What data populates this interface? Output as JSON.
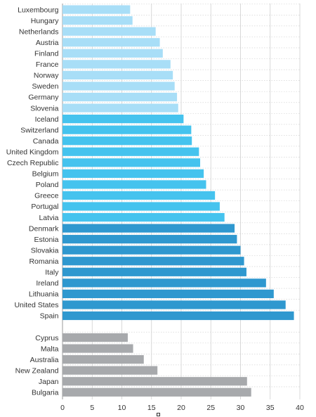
{
  "chart_data": {
    "type": "bar",
    "orientation": "horizontal",
    "title": "",
    "xlabel": "",
    "ylabel": "",
    "xlim": [
      0,
      40
    ],
    "xticks": [
      0,
      5,
      10,
      15,
      20,
      25,
      30,
      35,
      40
    ],
    "grid": true,
    "legend": "none",
    "groups": [
      {
        "color": "#a8def7",
        "items": [
          {
            "label": "Luxembourg",
            "value": 11.4
          },
          {
            "label": "Hungary",
            "value": 11.8
          },
          {
            "label": "Netherlands",
            "value": 15.7
          },
          {
            "label": "Austria",
            "value": 16.4
          },
          {
            "label": "Finland",
            "value": 16.9
          },
          {
            "label": "France",
            "value": 18.2
          },
          {
            "label": "Norway",
            "value": 18.6
          },
          {
            "label": "Sweden",
            "value": 18.9
          },
          {
            "label": "Germany",
            "value": 19.3
          },
          {
            "label": "Slovenia",
            "value": 19.5
          }
        ]
      },
      {
        "color": "#45c3ee",
        "items": [
          {
            "label": "Iceland",
            "value": 20.4
          },
          {
            "label": "Switzerland",
            "value": 21.7
          },
          {
            "label": "Canada",
            "value": 21.8
          },
          {
            "label": "United Kingdom",
            "value": 23.0
          },
          {
            "label": "Czech Republic",
            "value": 23.2
          },
          {
            "label": "Belgium",
            "value": 23.8
          },
          {
            "label": "Poland",
            "value": 24.2
          },
          {
            "label": "Greece",
            "value": 25.7
          },
          {
            "label": "Portugal",
            "value": 26.5
          },
          {
            "label": "Latvia",
            "value": 27.3
          }
        ]
      },
      {
        "color": "#2f98cf",
        "items": [
          {
            "label": "Denmark",
            "value": 29.0
          },
          {
            "label": "Estonia",
            "value": 29.4
          },
          {
            "label": "Slovakia",
            "value": 30.0
          },
          {
            "label": "Romania",
            "value": 30.6
          },
          {
            "label": "Italy",
            "value": 31.0
          },
          {
            "label": "Ireland",
            "value": 34.3
          },
          {
            "label": "Lithuania",
            "value": 35.6
          },
          {
            "label": "United States",
            "value": 37.6
          },
          {
            "label": "Spain",
            "value": 39.0
          }
        ]
      },
      {
        "color": "#a7a9ac",
        "items": [
          {
            "label": "Cyprus",
            "value": 11.0
          },
          {
            "label": "Malta",
            "value": 11.9
          },
          {
            "label": "Australia",
            "value": 13.7
          },
          {
            "label": "New Zealand",
            "value": 16.0
          },
          {
            "label": "Japan",
            "value": 31.1
          },
          {
            "label": "Bulgaria",
            "value": 31.8
          }
        ]
      }
    ]
  }
}
